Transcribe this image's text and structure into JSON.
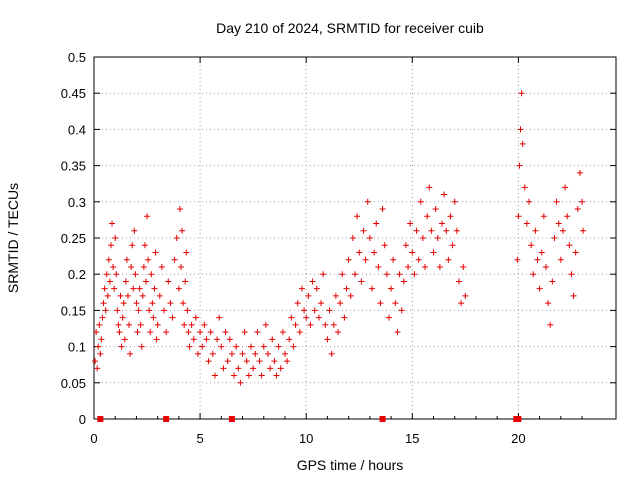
{
  "chart_data": {
    "type": "scatter",
    "title": "Day 210 of 2024, SRMTID for receiver cuib",
    "xlabel": "GPS time / hours",
    "ylabel": "SRMTID / TECUs",
    "xlim": [
      0,
      24.6
    ],
    "ylim": [
      0,
      0.5
    ],
    "x_ticks": [
      0,
      5,
      10,
      15,
      20
    ],
    "x_tick_labels": [
      "0",
      "5",
      "10",
      "15",
      "20"
    ],
    "y_ticks": [
      0,
      0.05,
      0.1,
      0.15,
      0.2,
      0.25,
      0.3,
      0.35,
      0.4,
      0.45,
      0.5
    ],
    "y_tick_labels": [
      "0",
      "0.05",
      "0.1",
      "0.15",
      "0.2",
      "0.25",
      "0.3",
      "0.35",
      "0.4",
      "0.45",
      "0.5"
    ],
    "grid": true,
    "marker": "+",
    "color": "#e60000",
    "series": [
      {
        "name": "SRMTID",
        "points": [
          [
            0.05,
            0.08
          ],
          [
            0.1,
            0.12
          ],
          [
            0.15,
            0.07
          ],
          [
            0.2,
            0.1
          ],
          [
            0.25,
            0.13
          ],
          [
            0.3,
            0.09
          ],
          [
            0.35,
            0.11
          ],
          [
            0.4,
            0.14
          ],
          [
            0.45,
            0.16
          ],
          [
            0.5,
            0.18
          ],
          [
            0.55,
            0.15
          ],
          [
            0.6,
            0.2
          ],
          [
            0.65,
            0.17
          ],
          [
            0.7,
            0.22
          ],
          [
            0.75,
            0.19
          ],
          [
            0.8,
            0.24
          ],
          [
            0.85,
            0.27
          ],
          [
            0.9,
            0.21
          ],
          [
            0.95,
            0.18
          ],
          [
            1.0,
            0.25
          ],
          [
            1.05,
            0.2
          ],
          [
            1.1,
            0.15
          ],
          [
            1.15,
            0.13
          ],
          [
            1.2,
            0.12
          ],
          [
            1.25,
            0.17
          ],
          [
            1.3,
            0.1
          ],
          [
            1.35,
            0.14
          ],
          [
            1.4,
            0.16
          ],
          [
            1.45,
            0.11
          ],
          [
            1.5,
            0.19
          ],
          [
            1.55,
            0.22
          ],
          [
            1.6,
            0.17
          ],
          [
            1.65,
            0.13
          ],
          [
            1.7,
            0.09
          ],
          [
            1.75,
            0.21
          ],
          [
            1.8,
            0.24
          ],
          [
            1.85,
            0.18
          ],
          [
            1.9,
            0.26
          ],
          [
            1.95,
            0.2
          ],
          [
            2.0,
            0.16
          ],
          [
            2.05,
            0.12
          ],
          [
            2.1,
            0.15
          ],
          [
            2.15,
            0.18
          ],
          [
            2.2,
            0.13
          ],
          [
            2.25,
            0.1
          ],
          [
            2.3,
            0.17
          ],
          [
            2.35,
            0.21
          ],
          [
            2.4,
            0.24
          ],
          [
            2.45,
            0.19
          ],
          [
            2.5,
            0.28
          ],
          [
            2.55,
            0.22
          ],
          [
            2.6,
            0.15
          ],
          [
            2.65,
            0.12
          ],
          [
            2.7,
            0.2
          ],
          [
            2.75,
            0.16
          ],
          [
            2.8,
            0.14
          ],
          [
            2.85,
            0.18
          ],
          [
            2.9,
            0.23
          ],
          [
            2.95,
            0.11
          ],
          [
            3.0,
            0.13
          ],
          [
            3.1,
            0.17
          ],
          [
            3.2,
            0.21
          ],
          [
            3.3,
            0.15
          ],
          [
            3.4,
            0.12
          ],
          [
            3.5,
            0.19
          ],
          [
            3.6,
            0.16
          ],
          [
            3.7,
            0.14
          ],
          [
            3.8,
            0.22
          ],
          [
            3.9,
            0.25
          ],
          [
            4.0,
            0.18
          ],
          [
            4.05,
            0.29
          ],
          [
            4.1,
            0.21
          ],
          [
            4.15,
            0.26
          ],
          [
            4.2,
            0.16
          ],
          [
            4.25,
            0.13
          ],
          [
            4.3,
            0.19
          ],
          [
            4.35,
            0.23
          ],
          [
            4.4,
            0.15
          ],
          [
            4.45,
            0.12
          ],
          [
            4.5,
            0.1
          ],
          [
            4.6,
            0.13
          ],
          [
            4.7,
            0.11
          ],
          [
            4.8,
            0.14
          ],
          [
            4.9,
            0.09
          ],
          [
            5.0,
            0.12
          ],
          [
            5.1,
            0.1
          ],
          [
            5.2,
            0.13
          ],
          [
            5.3,
            0.11
          ],
          [
            5.4,
            0.08
          ],
          [
            5.5,
            0.12
          ],
          [
            5.6,
            0.09
          ],
          [
            5.7,
            0.06
          ],
          [
            5.8,
            0.11
          ],
          [
            5.9,
            0.14
          ],
          [
            6.0,
            0.1
          ],
          [
            6.1,
            0.07
          ],
          [
            6.2,
            0.12
          ],
          [
            6.3,
            0.08
          ],
          [
            6.4,
            0.11
          ],
          [
            6.5,
            0.09
          ],
          [
            6.6,
            0.06
          ],
          [
            6.7,
            0.1
          ],
          [
            6.8,
            0.07
          ],
          [
            6.9,
            0.05
          ],
          [
            7.0,
            0.09
          ],
          [
            7.1,
            0.12
          ],
          [
            7.2,
            0.08
          ],
          [
            7.3,
            0.06
          ],
          [
            7.4,
            0.1
          ],
          [
            7.5,
            0.07
          ],
          [
            7.6,
            0.09
          ],
          [
            7.7,
            0.12
          ],
          [
            7.8,
            0.08
          ],
          [
            7.9,
            0.06
          ],
          [
            8.0,
            0.1
          ],
          [
            8.1,
            0.13
          ],
          [
            8.2,
            0.09
          ],
          [
            8.3,
            0.07
          ],
          [
            8.4,
            0.11
          ],
          [
            8.5,
            0.08
          ],
          [
            8.6,
            0.06
          ],
          [
            8.7,
            0.1
          ],
          [
            8.8,
            0.07
          ],
          [
            8.9,
            0.12
          ],
          [
            9.0,
            0.09
          ],
          [
            9.1,
            0.08
          ],
          [
            9.2,
            0.11
          ],
          [
            9.3,
            0.14
          ],
          [
            9.4,
            0.1
          ],
          [
            9.5,
            0.13
          ],
          [
            9.6,
            0.16
          ],
          [
            9.7,
            0.12
          ],
          [
            9.8,
            0.18
          ],
          [
            9.9,
            0.15
          ],
          [
            10.0,
            0.14
          ],
          [
            10.1,
            0.17
          ],
          [
            10.2,
            0.13
          ],
          [
            10.3,
            0.19
          ],
          [
            10.4,
            0.15
          ],
          [
            10.5,
            0.18
          ],
          [
            10.6,
            0.14
          ],
          [
            10.7,
            0.16
          ],
          [
            10.8,
            0.2
          ],
          [
            10.9,
            0.13
          ],
          [
            11.0,
            0.11
          ],
          [
            11.1,
            0.15
          ],
          [
            11.2,
            0.09
          ],
          [
            11.3,
            0.13
          ],
          [
            11.4,
            0.17
          ],
          [
            11.5,
            0.12
          ],
          [
            11.6,
            0.16
          ],
          [
            11.7,
            0.2
          ],
          [
            11.8,
            0.14
          ],
          [
            11.9,
            0.18
          ],
          [
            12.0,
            0.22
          ],
          [
            12.1,
            0.17
          ],
          [
            12.2,
            0.25
          ],
          [
            12.3,
            0.2
          ],
          [
            12.4,
            0.28
          ],
          [
            12.5,
            0.23
          ],
          [
            12.6,
            0.19
          ],
          [
            12.7,
            0.26
          ],
          [
            12.8,
            0.22
          ],
          [
            12.9,
            0.3
          ],
          [
            13.0,
            0.25
          ],
          [
            13.1,
            0.18
          ],
          [
            13.2,
            0.23
          ],
          [
            13.3,
            0.27
          ],
          [
            13.4,
            0.21
          ],
          [
            13.5,
            0.16
          ],
          [
            13.6,
            0.29
          ],
          [
            13.7,
            0.24
          ],
          [
            13.8,
            0.2
          ],
          [
            13.9,
            0.14
          ],
          [
            14.0,
            0.18
          ],
          [
            14.1,
            0.22
          ],
          [
            14.2,
            0.16
          ],
          [
            14.3,
            0.12
          ],
          [
            14.4,
            0.2
          ],
          [
            14.5,
            0.15
          ],
          [
            14.6,
            0.19
          ],
          [
            14.7,
            0.24
          ],
          [
            14.8,
            0.21
          ],
          [
            14.9,
            0.27
          ],
          [
            15.0,
            0.23
          ],
          [
            15.1,
            0.2
          ],
          [
            15.2,
            0.26
          ],
          [
            15.3,
            0.22
          ],
          [
            15.4,
            0.3
          ],
          [
            15.5,
            0.25
          ],
          [
            15.6,
            0.21
          ],
          [
            15.7,
            0.28
          ],
          [
            15.8,
            0.32
          ],
          [
            15.9,
            0.26
          ],
          [
            16.0,
            0.23
          ],
          [
            16.1,
            0.29
          ],
          [
            16.2,
            0.25
          ],
          [
            16.3,
            0.21
          ],
          [
            16.4,
            0.27
          ],
          [
            16.5,
            0.31
          ],
          [
            16.6,
            0.26
          ],
          [
            16.7,
            0.22
          ],
          [
            16.8,
            0.28
          ],
          [
            16.9,
            0.24
          ],
          [
            17.0,
            0.3
          ],
          [
            17.1,
            0.26
          ],
          [
            17.2,
            0.19
          ],
          [
            17.3,
            0.16
          ],
          [
            17.4,
            0.21
          ],
          [
            17.5,
            0.17
          ],
          [
            19.95,
            0.22
          ],
          [
            20.0,
            0.28
          ],
          [
            20.05,
            0.35
          ],
          [
            20.1,
            0.4
          ],
          [
            20.15,
            0.45
          ],
          [
            20.2,
            0.38
          ],
          [
            20.3,
            0.32
          ],
          [
            20.4,
            0.27
          ],
          [
            20.5,
            0.3
          ],
          [
            20.6,
            0.24
          ],
          [
            20.7,
            0.2
          ],
          [
            20.8,
            0.26
          ],
          [
            20.9,
            0.22
          ],
          [
            21.0,
            0.18
          ],
          [
            21.1,
            0.23
          ],
          [
            21.2,
            0.28
          ],
          [
            21.3,
            0.21
          ],
          [
            21.4,
            0.16
          ],
          [
            21.5,
            0.13
          ],
          [
            21.6,
            0.19
          ],
          [
            21.7,
            0.25
          ],
          [
            21.8,
            0.3
          ],
          [
            21.9,
            0.27
          ],
          [
            22.0,
            0.22
          ],
          [
            22.1,
            0.26
          ],
          [
            22.2,
            0.32
          ],
          [
            22.3,
            0.28
          ],
          [
            22.4,
            0.24
          ],
          [
            22.5,
            0.2
          ],
          [
            22.6,
            0.17
          ],
          [
            22.7,
            0.23
          ],
          [
            22.8,
            0.29
          ],
          [
            22.9,
            0.34
          ],
          [
            23.0,
            0.3
          ],
          [
            23.05,
            0.26
          ]
        ]
      }
    ],
    "gap_markers": [
      0.3,
      3.4,
      6.5,
      13.6,
      19.9,
      20.0
    ]
  }
}
